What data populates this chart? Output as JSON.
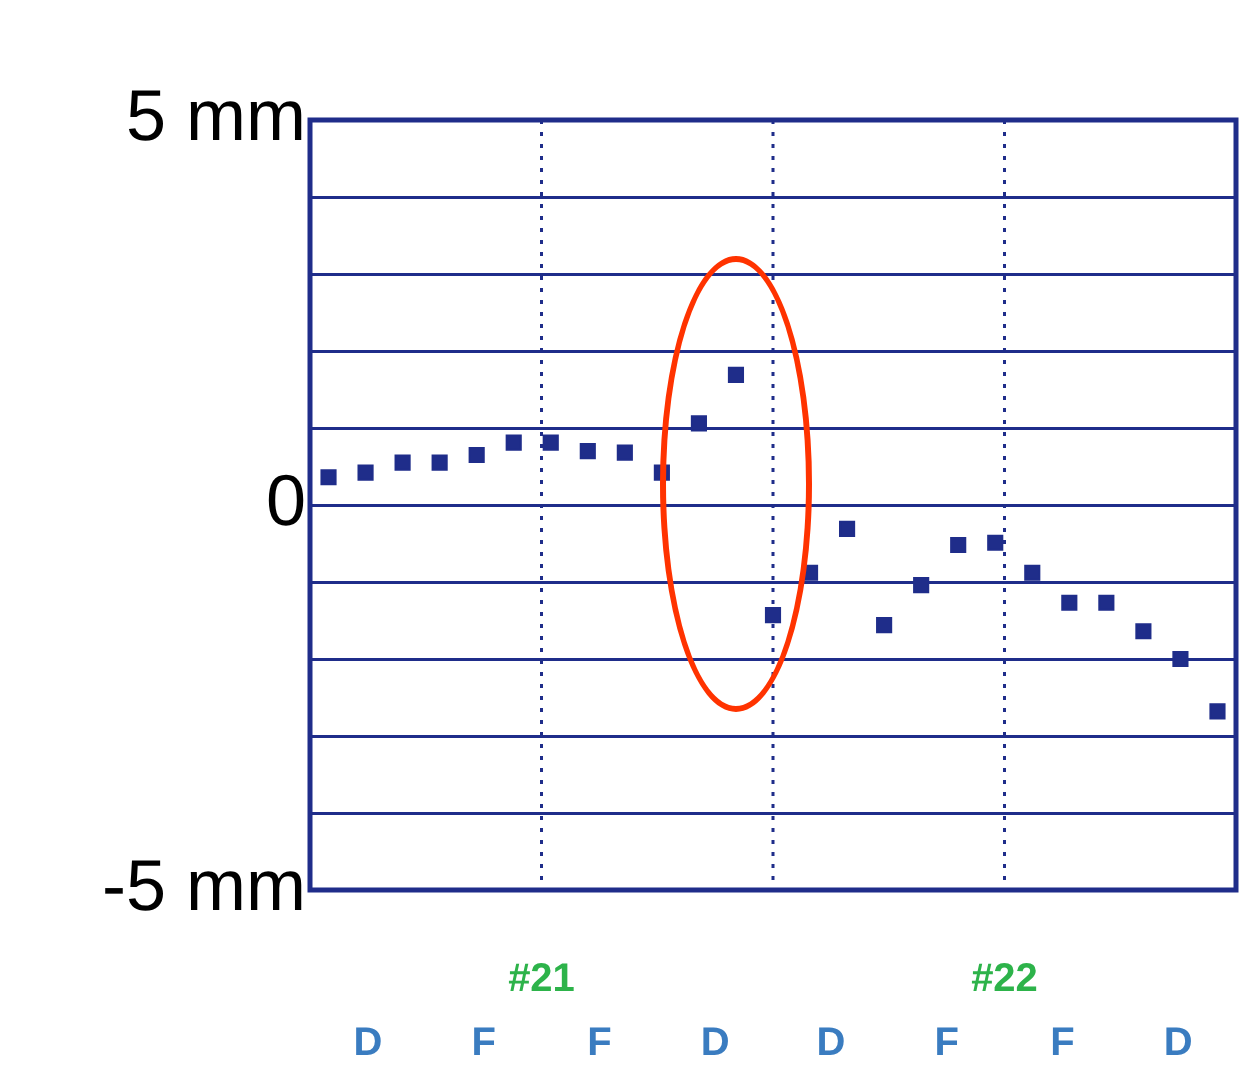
{
  "chart_data": {
    "type": "scatter",
    "categories": [
      null,
      null,
      null,
      null,
      null,
      null,
      null,
      null,
      null,
      null,
      null,
      null,
      null,
      null,
      null,
      null,
      null,
      null,
      null,
      null,
      null,
      null,
      null,
      null,
      null
    ],
    "series": [
      {
        "color": "#1f2d8a",
        "values": [
          0.36,
          0.42,
          0.55,
          0.55,
          0.65,
          0.81,
          0.81,
          0.7,
          0.68,
          0.42,
          1.06,
          1.69,
          -1.43,
          -0.88,
          -0.31,
          -1.56,
          -1.04,
          -0.52,
          -0.49,
          -0.88,
          -1.27,
          -1.27,
          -1.64,
          -2.0,
          -2.68
        ]
      }
    ],
    "ylim": [
      -5,
      5
    ],
    "yticks": [
      {
        "value": -5,
        "label": "-5 mm"
      },
      {
        "value": -4,
        "label": null
      },
      {
        "value": -3,
        "label": null
      },
      {
        "value": -2,
        "label": null
      },
      {
        "value": -1,
        "label": null
      },
      {
        "value": 0,
        "label": "0"
      },
      {
        "value": 1,
        "label": null
      },
      {
        "value": 2,
        "label": null
      },
      {
        "value": 3,
        "label": null
      },
      {
        "value": 4,
        "label": null
      },
      {
        "value": 5,
        "label": "5 mm"
      }
    ],
    "annotations": [
      "#21",
      "#22",
      "D",
      "F",
      "F",
      "D",
      "D",
      "F",
      "F",
      "D"
    ],
    "grid": true,
    "marker": "square"
  }
}
